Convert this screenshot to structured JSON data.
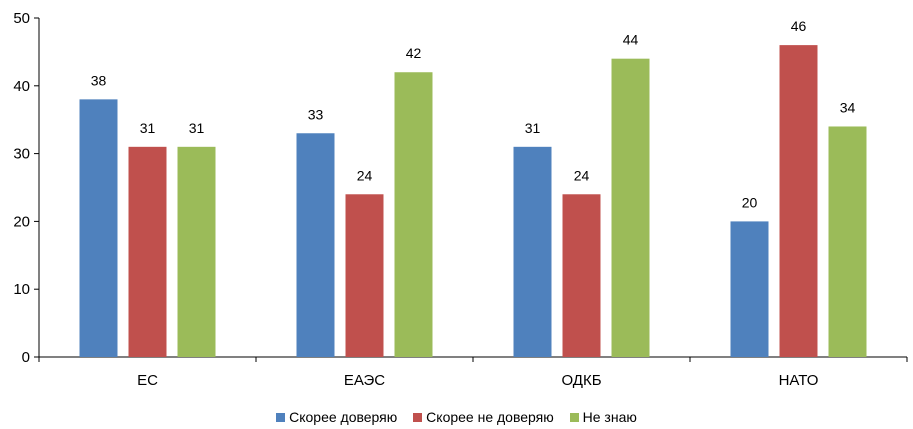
{
  "chart_data": {
    "type": "bar",
    "categories": [
      "ЕС",
      "ЕАЭС",
      "ОДКБ",
      "НАТО"
    ],
    "series": [
      {
        "name": "Скорее доверяю",
        "values": [
          38,
          33,
          31,
          20
        ],
        "color": "#4F81BD"
      },
      {
        "name": "Скорее не доверяю",
        "values": [
          31,
          24,
          24,
          46
        ],
        "color": "#C0504D"
      },
      {
        "name": "Не знаю",
        "values": [
          31,
          42,
          44,
          34
        ],
        "color": "#9BBB59"
      }
    ],
    "ylim": [
      0,
      50
    ],
    "yticks": [
      0,
      10,
      20,
      30,
      40,
      50
    ],
    "grid": false,
    "legend": "bottom",
    "data_labels": true
  }
}
